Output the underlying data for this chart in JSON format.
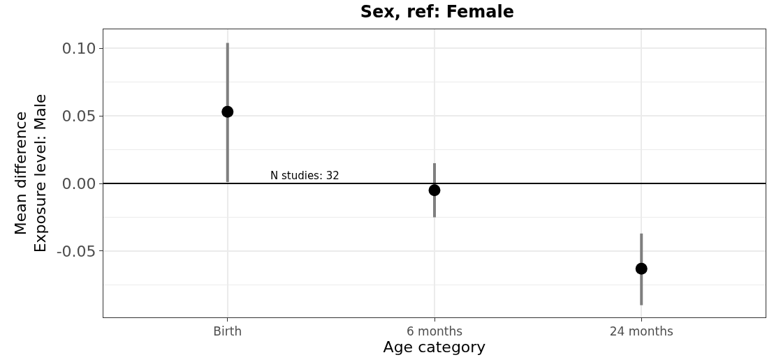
{
  "chart_data": {
    "type": "scatter",
    "title": "Sex, ref: Female",
    "xlabel": "Age category",
    "ylabel": "Mean difference\nExposure level: Male",
    "categories": [
      "Birth",
      "6 months",
      "24 months"
    ],
    "series": [
      {
        "color": "#000000",
        "values": [
          0.053,
          -0.005,
          -0.063
        ],
        "errors": [
          [
            0.001,
            0.104
          ],
          [
            -0.025,
            0.015
          ],
          [
            -0.09,
            -0.037
          ]
        ]
      }
    ],
    "ylim": [
      -0.099,
      0.114
    ],
    "yticks": [
      {
        "value": -0.05,
        "label": "-0.05"
      },
      {
        "value": 0,
        "label": "0.00"
      },
      {
        "value": 0.05,
        "label": "0.05"
      },
      {
        "value": 0.1,
        "label": "0.10"
      }
    ],
    "ref_lines": [
      {
        "axis": "y",
        "value": 0,
        "color": "#000000"
      }
    ],
    "annotations": [
      {
        "text": "N studies: 32",
        "y": 0
      }
    ],
    "grid": true,
    "marker": "circle"
  }
}
